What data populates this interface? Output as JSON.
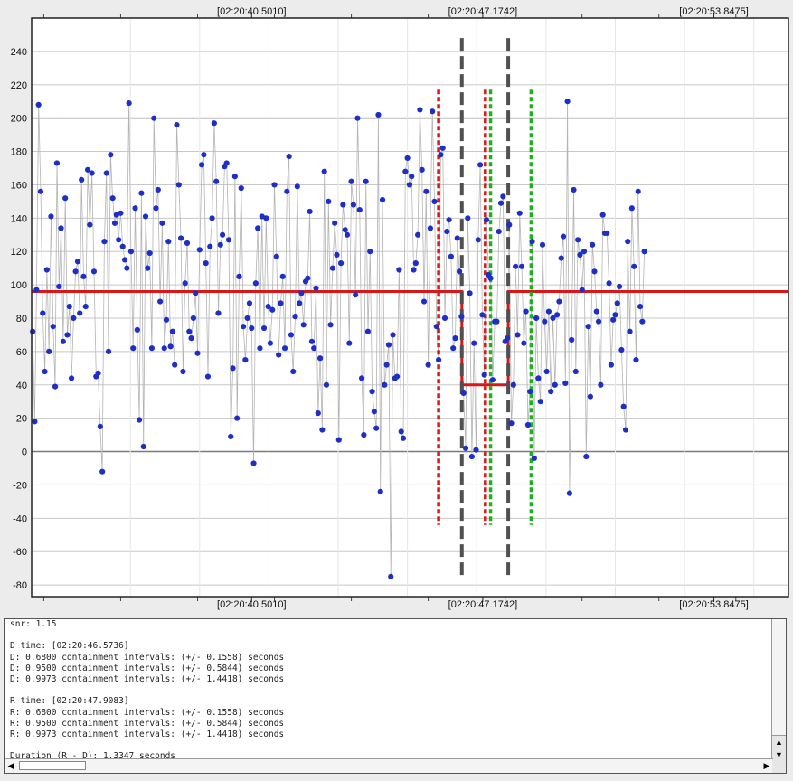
{
  "chart_data": {
    "type": "scatter",
    "y_ticks": [
      240,
      220,
      200,
      180,
      160,
      140,
      120,
      100,
      80,
      60,
      40,
      20,
      0,
      -20,
      -40,
      -60,
      -80
    ],
    "ylim": [
      -87,
      260
    ],
    "x_ticks": [
      {
        "label": "[02:20:40.5010]",
        "t": 40.501
      },
      {
        "label": "[02:20:47.1742]",
        "t": 47.1742
      },
      {
        "label": "[02:20:53.8475]",
        "t": 53.8475
      }
    ],
    "xlim_seconds": [
      34.15,
      56.0
    ],
    "grid": true,
    "dark_gridlines": [
      200,
      0
    ],
    "colors": {
      "points": "#1e2fc8",
      "connector": "#b4b4b4",
      "model": "#d81818",
      "D_lines": "#d81818",
      "R_lines": "#1fb01f",
      "event_lines": "#505050",
      "grid": "#c8c8c8",
      "grid_dark": "#7a7a7a"
    },
    "series": [],
    "model_curve": [
      {
        "t": 34.15,
        "y": 96
      },
      {
        "t": 46.57,
        "y": 96
      },
      {
        "t": 46.57,
        "y": 40
      },
      {
        "t": 47.91,
        "y": 40
      },
      {
        "t": 47.91,
        "y": 96
      },
      {
        "t": 56.0,
        "y": 96
      }
    ],
    "vlines": [
      {
        "t": 45.9,
        "kind": "D",
        "style": "dotted",
        "y_top": 217,
        "y_bottom": -44
      },
      {
        "t": 47.25,
        "kind": "D",
        "style": "dotted",
        "y_top": 217,
        "y_bottom": -44
      },
      {
        "t": 46.57,
        "kind": "event",
        "style": "dashed",
        "y_top": 248,
        "y_bottom": -77
      },
      {
        "t": 47.91,
        "kind": "event",
        "style": "dashed",
        "y_top": 248,
        "y_bottom": -77
      },
      {
        "t": 47.4,
        "kind": "R",
        "style": "dotted",
        "y_top": 217,
        "y_bottom": -44
      },
      {
        "t": 48.57,
        "kind": "R",
        "style": "dotted",
        "y_top": 217,
        "y_bottom": -44
      }
    ],
    "points": [
      [
        34.18,
        72
      ],
      [
        34.24,
        18
      ],
      [
        34.29,
        97
      ],
      [
        34.35,
        208
      ],
      [
        34.41,
        156
      ],
      [
        34.47,
        83
      ],
      [
        34.53,
        48
      ],
      [
        34.59,
        109
      ],
      [
        34.65,
        60
      ],
      [
        34.71,
        141
      ],
      [
        34.77,
        75
      ],
      [
        34.83,
        39
      ],
      [
        34.88,
        173
      ],
      [
        34.94,
        99
      ],
      [
        35.0,
        134
      ],
      [
        35.06,
        66
      ],
      [
        35.12,
        152
      ],
      [
        35.18,
        70
      ],
      [
        35.24,
        87
      ],
      [
        35.3,
        44
      ],
      [
        35.36,
        80
      ],
      [
        35.42,
        108
      ],
      [
        35.48,
        114
      ],
      [
        35.54,
        83
      ],
      [
        35.59,
        163
      ],
      [
        35.65,
        105
      ],
      [
        35.71,
        87
      ],
      [
        35.77,
        169
      ],
      [
        35.83,
        136
      ],
      [
        35.89,
        167
      ],
      [
        35.95,
        108
      ],
      [
        36.01,
        45
      ],
      [
        36.07,
        47
      ],
      [
        36.13,
        15
      ],
      [
        36.19,
        -12
      ],
      [
        36.25,
        126
      ],
      [
        36.31,
        167
      ],
      [
        36.37,
        60
      ],
      [
        36.43,
        178
      ],
      [
        36.49,
        152
      ],
      [
        36.55,
        137
      ],
      [
        36.6,
        142
      ],
      [
        36.66,
        127
      ],
      [
        36.72,
        143
      ],
      [
        36.78,
        123
      ],
      [
        36.84,
        115
      ],
      [
        36.9,
        110
      ],
      [
        36.96,
        209
      ],
      [
        37.02,
        120
      ],
      [
        37.08,
        62
      ],
      [
        37.14,
        146
      ],
      [
        37.2,
        73
      ],
      [
        37.26,
        19
      ],
      [
        37.32,
        155
      ],
      [
        37.38,
        3
      ],
      [
        37.44,
        141
      ],
      [
        37.5,
        110
      ],
      [
        37.56,
        119
      ],
      [
        37.62,
        62
      ],
      [
        37.68,
        200
      ],
      [
        37.74,
        146
      ],
      [
        37.8,
        157
      ],
      [
        37.86,
        90
      ],
      [
        37.92,
        137
      ],
      [
        37.98,
        62
      ],
      [
        38.04,
        79
      ],
      [
        38.1,
        126
      ],
      [
        38.16,
        63
      ],
      [
        38.22,
        72
      ],
      [
        38.28,
        52
      ],
      [
        38.34,
        196
      ],
      [
        38.4,
        160
      ],
      [
        38.46,
        128
      ],
      [
        38.52,
        48
      ],
      [
        38.58,
        101
      ],
      [
        38.64,
        125
      ],
      [
        38.7,
        72
      ],
      [
        38.76,
        68
      ],
      [
        38.82,
        80
      ],
      [
        38.88,
        95
      ],
      [
        38.94,
        59
      ],
      [
        39.0,
        121
      ],
      [
        39.06,
        172
      ],
      [
        39.12,
        178
      ],
      [
        39.18,
        113
      ],
      [
        39.24,
        45
      ],
      [
        39.3,
        123
      ],
      [
        39.36,
        140
      ],
      [
        39.42,
        197
      ],
      [
        39.48,
        162
      ],
      [
        39.54,
        83
      ],
      [
        39.6,
        124
      ],
      [
        39.66,
        130
      ],
      [
        39.72,
        171
      ],
      [
        39.78,
        173
      ],
      [
        39.84,
        127
      ],
      [
        39.9,
        9
      ],
      [
        39.96,
        50
      ],
      [
        40.02,
        165
      ],
      [
        40.08,
        20
      ],
      [
        40.14,
        105
      ],
      [
        40.2,
        158
      ],
      [
        40.26,
        75
      ],
      [
        40.32,
        55
      ],
      [
        40.38,
        80
      ],
      [
        40.44,
        89
      ],
      [
        40.5,
        74
      ],
      [
        40.56,
        -7
      ],
      [
        40.62,
        101
      ],
      [
        40.68,
        134
      ],
      [
        40.74,
        62
      ],
      [
        40.8,
        141
      ],
      [
        40.86,
        74
      ],
      [
        40.92,
        140
      ],
      [
        40.98,
        87
      ],
      [
        41.04,
        65
      ],
      [
        41.1,
        85
      ],
      [
        41.16,
        160
      ],
      [
        41.22,
        117
      ],
      [
        41.28,
        58
      ],
      [
        41.34,
        89
      ],
      [
        41.4,
        105
      ],
      [
        41.46,
        62
      ],
      [
        41.52,
        156
      ],
      [
        41.58,
        177
      ],
      [
        41.64,
        70
      ],
      [
        41.7,
        48
      ],
      [
        41.76,
        81
      ],
      [
        41.82,
        159
      ],
      [
        41.88,
        89
      ],
      [
        41.94,
        95
      ],
      [
        42.0,
        76
      ],
      [
        42.06,
        102
      ],
      [
        42.12,
        104
      ],
      [
        42.18,
        144
      ],
      [
        42.24,
        66
      ],
      [
        42.3,
        62
      ],
      [
        42.36,
        98
      ],
      [
        42.42,
        23
      ],
      [
        42.48,
        56
      ],
      [
        42.54,
        13
      ],
      [
        42.6,
        168
      ],
      [
        42.66,
        40
      ],
      [
        42.72,
        150
      ],
      [
        42.78,
        76
      ],
      [
        42.84,
        110
      ],
      [
        42.9,
        137
      ],
      [
        42.96,
        118
      ],
      [
        43.02,
        7
      ],
      [
        43.08,
        113
      ],
      [
        43.14,
        148
      ],
      [
        43.2,
        133
      ],
      [
        43.26,
        130
      ],
      [
        43.32,
        65
      ],
      [
        43.38,
        162
      ],
      [
        43.44,
        148
      ],
      [
        43.5,
        94
      ],
      [
        43.56,
        200
      ],
      [
        43.62,
        145
      ],
      [
        43.68,
        44
      ],
      [
        43.74,
        10
      ],
      [
        43.8,
        162
      ],
      [
        43.86,
        72
      ],
      [
        43.92,
        120
      ],
      [
        43.98,
        36
      ],
      [
        44.04,
        24
      ],
      [
        44.1,
        14
      ],
      [
        44.16,
        202
      ],
      [
        44.22,
        -24
      ],
      [
        44.28,
        151
      ],
      [
        44.34,
        40
      ],
      [
        44.4,
        52
      ],
      [
        44.46,
        64
      ],
      [
        44.52,
        -75
      ],
      [
        44.58,
        70
      ],
      [
        44.64,
        44
      ],
      [
        44.7,
        45
      ],
      [
        44.76,
        109
      ],
      [
        44.82,
        12
      ],
      [
        44.88,
        8
      ],
      [
        44.94,
        168
      ],
      [
        45.0,
        176
      ],
      [
        45.06,
        160
      ],
      [
        45.12,
        165
      ],
      [
        45.18,
        109
      ],
      [
        45.24,
        113
      ],
      [
        45.3,
        130
      ],
      [
        45.36,
        205
      ],
      [
        45.42,
        169
      ],
      [
        45.48,
        90
      ],
      [
        45.54,
        156
      ],
      [
        45.6,
        52
      ],
      [
        45.66,
        134
      ],
      [
        45.72,
        204
      ],
      [
        45.78,
        150
      ],
      [
        45.84,
        75
      ],
      [
        45.9,
        55
      ],
      [
        45.96,
        178
      ],
      [
        46.02,
        182
      ],
      [
        46.08,
        80
      ],
      [
        46.14,
        132
      ],
      [
        46.2,
        139
      ],
      [
        46.26,
        117
      ],
      [
        46.32,
        62
      ],
      [
        46.38,
        68
      ],
      [
        46.44,
        128
      ],
      [
        46.5,
        108
      ],
      [
        46.56,
        81
      ],
      [
        46.62,
        35
      ],
      [
        46.68,
        2
      ],
      [
        46.74,
        140
      ],
      [
        46.8,
        95
      ],
      [
        46.86,
        -3
      ],
      [
        46.92,
        65
      ],
      [
        46.98,
        1
      ],
      [
        47.04,
        127
      ],
      [
        47.1,
        172
      ],
      [
        47.16,
        82
      ],
      [
        47.22,
        46
      ],
      [
        47.28,
        139
      ],
      [
        47.34,
        106
      ],
      [
        47.4,
        104
      ],
      [
        47.46,
        43
      ],
      [
        47.52,
        78
      ],
      [
        47.58,
        78
      ],
      [
        47.64,
        132
      ],
      [
        47.7,
        149
      ],
      [
        47.76,
        153
      ],
      [
        47.82,
        66
      ],
      [
        47.88,
        68
      ],
      [
        47.94,
        136
      ],
      [
        48.0,
        17
      ],
      [
        48.06,
        40
      ],
      [
        48.12,
        111
      ],
      [
        48.18,
        70
      ],
      [
        48.24,
        143
      ],
      [
        48.3,
        111
      ],
      [
        48.36,
        65
      ],
      [
        48.42,
        84
      ],
      [
        48.48,
        16
      ],
      [
        48.54,
        36
      ],
      [
        48.6,
        126
      ],
      [
        48.66,
        -4
      ],
      [
        48.72,
        80
      ],
      [
        48.78,
        44
      ],
      [
        48.84,
        30
      ],
      [
        48.9,
        124
      ],
      [
        48.96,
        78
      ],
      [
        49.02,
        48
      ],
      [
        49.08,
        84
      ],
      [
        49.14,
        36
      ],
      [
        49.2,
        80
      ],
      [
        49.26,
        40
      ],
      [
        49.32,
        82
      ],
      [
        49.38,
        90
      ],
      [
        49.44,
        116
      ],
      [
        49.5,
        129
      ],
      [
        49.56,
        41
      ],
      [
        49.62,
        210
      ],
      [
        49.68,
        -25
      ],
      [
        49.74,
        67
      ],
      [
        49.8,
        157
      ],
      [
        49.86,
        48
      ],
      [
        49.92,
        127
      ],
      [
        49.98,
        118
      ],
      [
        50.04,
        97
      ],
      [
        50.1,
        120
      ],
      [
        50.16,
        -3
      ],
      [
        50.22,
        75
      ],
      [
        50.28,
        33
      ],
      [
        50.34,
        124
      ],
      [
        50.4,
        108
      ],
      [
        50.46,
        84
      ],
      [
        50.52,
        78
      ],
      [
        50.58,
        40
      ],
      [
        50.64,
        142
      ],
      [
        50.7,
        131
      ],
      [
        50.76,
        131
      ],
      [
        50.82,
        101
      ],
      [
        50.88,
        52
      ],
      [
        50.94,
        79
      ],
      [
        51.0,
        82
      ],
      [
        51.06,
        89
      ],
      [
        51.12,
        99
      ],
      [
        51.18,
        61
      ],
      [
        51.24,
        27
      ],
      [
        51.3,
        13
      ],
      [
        51.36,
        126
      ],
      [
        51.42,
        72
      ],
      [
        51.48,
        146
      ],
      [
        51.54,
        111
      ],
      [
        51.6,
        55
      ],
      [
        51.66,
        156
      ],
      [
        51.72,
        87
      ],
      [
        51.78,
        78
      ],
      [
        51.84,
        120
      ]
    ]
  },
  "log": {
    "lines": [
      "snr: 1.15",
      "",
      "D time: [02:20:46.5736]",
      "D: 0.6800 containment intervals: (+/- 0.1558) seconds",
      "D: 0.9500 containment intervals: (+/- 0.5844) seconds",
      "D: 0.9973 containment intervals: (+/- 1.4418) seconds",
      "",
      "R time: [02:20:47.9083]",
      "R: 0.6800 containment intervals: (+/- 0.1558) seconds",
      "R: 0.9500 containment intervals: (+/- 0.5844) seconds",
      "R: 0.9973 containment intervals: (+/- 1.4418) seconds",
      "",
      "Duration (R - D): 1.3347 seconds"
    ],
    "scroll_up_icon": "triangle-up",
    "scroll_down_icon": "triangle-down",
    "scroll_left_icon": "triangle-left",
    "scroll_right_icon": "triangle-right"
  }
}
